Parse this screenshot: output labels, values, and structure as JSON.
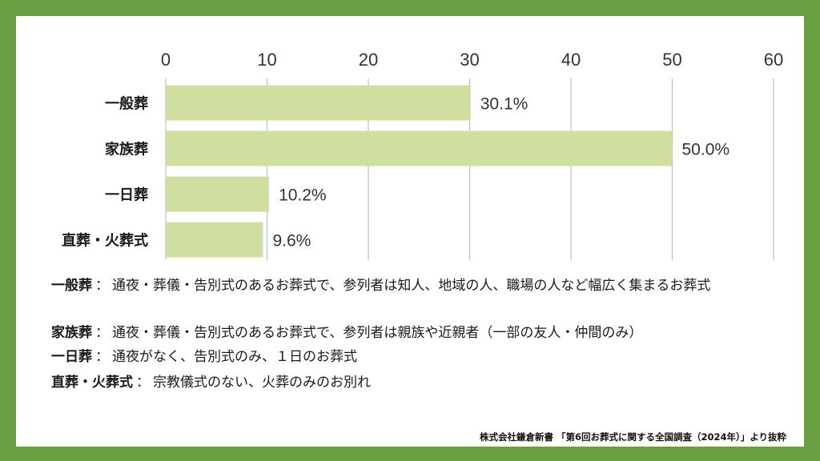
{
  "chart_data": {
    "type": "bar",
    "orientation": "horizontal",
    "categories": [
      "一般葬",
      "家族葬",
      "一日葬",
      "直葬・火葬式"
    ],
    "values": [
      30.1,
      50.0,
      10.2,
      9.6
    ],
    "value_labels": [
      "30.1%",
      "50.0%",
      "10.2%",
      "9.6%"
    ],
    "xlim": [
      0,
      60
    ],
    "xticks": [
      0,
      10,
      20,
      30,
      40,
      50,
      60
    ],
    "axis_position": "top",
    "grid": true,
    "bar_color": "#cfdfa0",
    "title": "",
    "xlabel": "",
    "ylabel": ""
  },
  "legend": [
    {
      "term": "一般葬",
      "colon": "：",
      "desc": "通夜・葬儀・告別式のあるお葬式で、参列者は知人、地域の人、職場の人など幅広く集まるお葬式"
    },
    {
      "term": "家族葬",
      "colon": "：",
      "desc": "通夜・葬儀・告別式のあるお葬式で、参列者は親族や近親者（一部の友人・仲間のみ）"
    },
    {
      "term": "一日葬",
      "colon": "：",
      "desc": "通夜がなく、告別式のみ、１日のお葬式"
    },
    {
      "term": "直葬・火葬式",
      "colon": "：",
      "desc": "宗教儀式のない、火葬のみのお別れ"
    }
  ],
  "source": "株式会社鎌倉新書 「第6回お葬式に関する全国調査（2024年）」より抜粋",
  "colors": {
    "frame": "#6a9e43",
    "bar": "#cfdfa0",
    "grid": "#bdbdbd"
  }
}
